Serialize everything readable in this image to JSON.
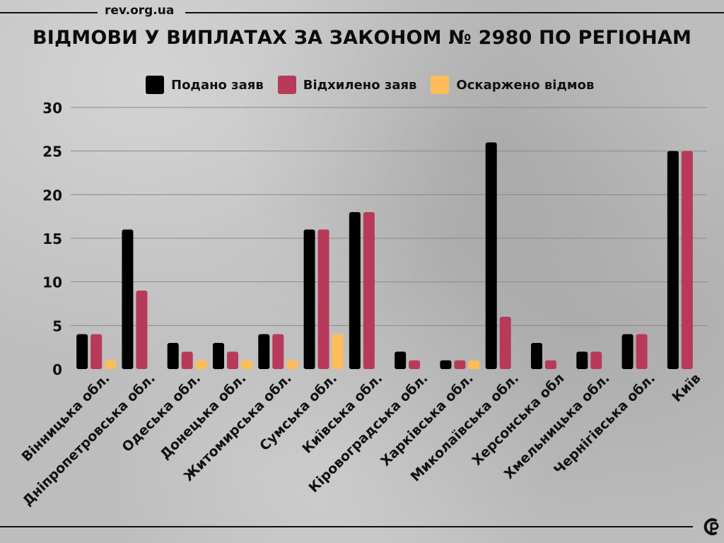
{
  "header": {
    "source": "rev.org.ua",
    "title": "ВІДМОВИ У ВИПЛАТАХ ЗА ЗАКОНОМ № 2980 ПО РЕГІОНАМ"
  },
  "legend": [
    {
      "label": "Подано заяв",
      "color": "#000000"
    },
    {
      "label": "Відхилено заяв",
      "color": "#b83a5a"
    },
    {
      "label": "Оскаржено відмов",
      "color": "#ffbd5a"
    }
  ],
  "chart_data": {
    "type": "bar",
    "title": "ВІДМОВИ У ВИПЛАТАХ ЗА ЗАКОНОМ № 2980 ПО РЕГІОНАМ",
    "ylim": [
      0,
      30
    ],
    "yticks": [
      0,
      5,
      10,
      15,
      20,
      25,
      30
    ],
    "grid": true,
    "legend_position": "top",
    "categories": [
      "Вінницька обл.",
      "Дніпропетровська обл.",
      "Одеська обл.",
      "Донецька обл.",
      "Житомирська обл.",
      "Сумська обл.",
      "Київська обл.",
      "Кіровоградська обл.",
      "Харківська обл.",
      "Миколаївська обл.",
      "Херсонська обл",
      "Хмельницька обл.",
      "Чернігівська обл.",
      "Київ"
    ],
    "series": [
      {
        "name": "Подано заяв",
        "color": "#000000",
        "values": [
          4,
          16,
          3,
          3,
          4,
          16,
          18,
          2,
          1,
          26,
          3,
          2,
          4,
          25
        ]
      },
      {
        "name": "Відхилено заяв",
        "color": "#b83a5a",
        "values": [
          4,
          9,
          2,
          2,
          4,
          16,
          18,
          1,
          1,
          6,
          1,
          2,
          4,
          25
        ]
      },
      {
        "name": "Оскаржено відмов",
        "color": "#ffbd5a",
        "values": [
          1,
          0,
          1,
          1,
          1,
          4,
          0,
          0,
          1,
          0,
          0,
          0,
          0,
          0
        ]
      }
    ]
  }
}
